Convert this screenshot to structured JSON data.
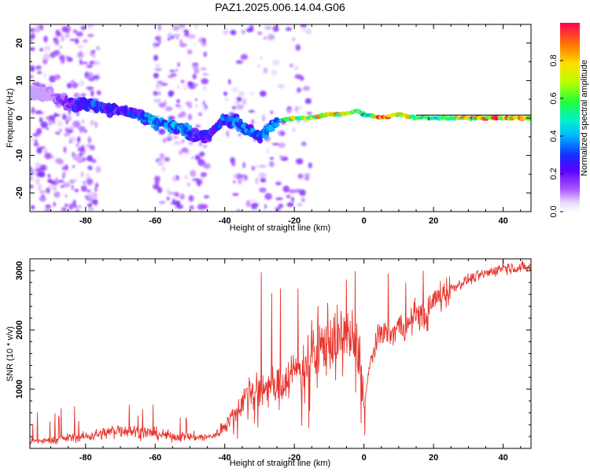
{
  "title": "PAZ1.2025.006.14.04.G06",
  "colors": {
    "snr_line": "#e8342c",
    "spectrogram_ridge": "#6a00ff",
    "frame": "#000000"
  },
  "chart_data": [
    {
      "type": "heatmap",
      "xlabel": "Height of straight line (km)",
      "ylabel": "Frequency (Hz)",
      "xlim": [
        -96,
        48
      ],
      "ylim": [
        -25,
        25
      ],
      "xticks": [
        -80,
        -60,
        -40,
        -20,
        0,
        20,
        40
      ],
      "xtick_labels": [
        "-80",
        "-60",
        "-40",
        "-20",
        "0",
        "20",
        "40"
      ],
      "yticks": [
        -20,
        -10,
        0,
        10,
        20
      ],
      "ytick_labels": [
        "-20",
        "-10",
        "0",
        "10",
        "20"
      ],
      "colorbar": {
        "label": "Normalized spectral amplitude",
        "range": [
          0,
          1
        ],
        "ticks": [
          0.0,
          0.2,
          0.4,
          0.6,
          0.8
        ],
        "tick_labels": [
          "0.0",
          "0.2",
          "0.4",
          "0.6",
          "0.8"
        ],
        "colormap": "rainbow (violet to red)"
      },
      "ridge": {
        "x": [
          -96,
          -90,
          -85,
          -80,
          -75,
          -70,
          -65,
          -60,
          -55,
          -50,
          -45,
          -40,
          -35,
          -30,
          -25,
          -20,
          -15,
          -10,
          -5,
          -2,
          0,
          5,
          10,
          15,
          20,
          30,
          40,
          48
        ],
        "frequency": [
          7,
          6,
          4,
          4,
          3,
          2,
          1,
          -1,
          -2,
          -4,
          -5,
          0,
          -2,
          -5,
          -1,
          0,
          0,
          1,
          1,
          2,
          1,
          0,
          1,
          0,
          0,
          0,
          0,
          0
        ],
        "amplitude": [
          0.05,
          0.1,
          0.2,
          0.35,
          0.3,
          0.25,
          0.3,
          0.45,
          0.4,
          0.35,
          0.25,
          0.35,
          0.4,
          0.35,
          0.4,
          0.7,
          0.75,
          0.8,
          0.85,
          0.7,
          0.5,
          0.95,
          0.9,
          0.6,
          0.5,
          0.95,
          0.95,
          0.9
        ]
      }
    },
    {
      "type": "line",
      "xlabel": "Height of straight line (km)",
      "ylabel": "SNR (10 * v/v)",
      "xlim": [
        -96,
        48
      ],
      "ylim": [
        0,
        3200
      ],
      "xticks": [
        -80,
        -60,
        -40,
        -20,
        0,
        20,
        40
      ],
      "xtick_labels": [
        "-80",
        "-60",
        "-40",
        "-20",
        "0",
        "20",
        "40"
      ],
      "yticks": [
        1000,
        2000,
        3000
      ],
      "ytick_labels": [
        "1000",
        "2000",
        "3000"
      ],
      "series": [
        {
          "x": [
            -96,
            -90,
            -85,
            -80,
            -75,
            -70,
            -65,
            -60,
            -55,
            -50,
            -45,
            -42,
            -40,
            -37,
            -35,
            -32,
            -30,
            -28,
            -25,
            -22,
            -20,
            -18,
            -15,
            -12,
            -10,
            -8,
            -5,
            -3,
            -1,
            0,
            2,
            5,
            8,
            10,
            12,
            15,
            18,
            20,
            25,
            30,
            35,
            40,
            45,
            48
          ],
          "y": [
            120,
            130,
            180,
            200,
            250,
            320,
            280,
            250,
            200,
            200,
            180,
            250,
            400,
            600,
            800,
            1000,
            900,
            1100,
            1000,
            1200,
            1300,
            1400,
            1600,
            1700,
            1900,
            1750,
            1900,
            1800,
            1500,
            700,
            1500,
            2000,
            1900,
            2100,
            2000,
            2300,
            2200,
            2500,
            2700,
            2850,
            2950,
            3050,
            3050,
            3050
          ],
          "spikes": [
            {
              "x": -29.5,
              "y": 2970
            },
            {
              "x": -26.5,
              "y": 2620
            },
            {
              "x": -24,
              "y": 2700
            },
            {
              "x": -19,
              "y": 2700
            },
            {
              "x": -14.5,
              "y": 2000
            },
            {
              "x": -5,
              "y": 2850
            },
            {
              "x": -2.5,
              "y": 2990
            },
            {
              "x": 0.2,
              "y": 220
            },
            {
              "x": 7,
              "y": 2950
            },
            {
              "x": 12,
              "y": 2800
            },
            {
              "x": 17,
              "y": 3000
            },
            {
              "x": 40,
              "y": 3200
            }
          ]
        }
      ]
    }
  ]
}
